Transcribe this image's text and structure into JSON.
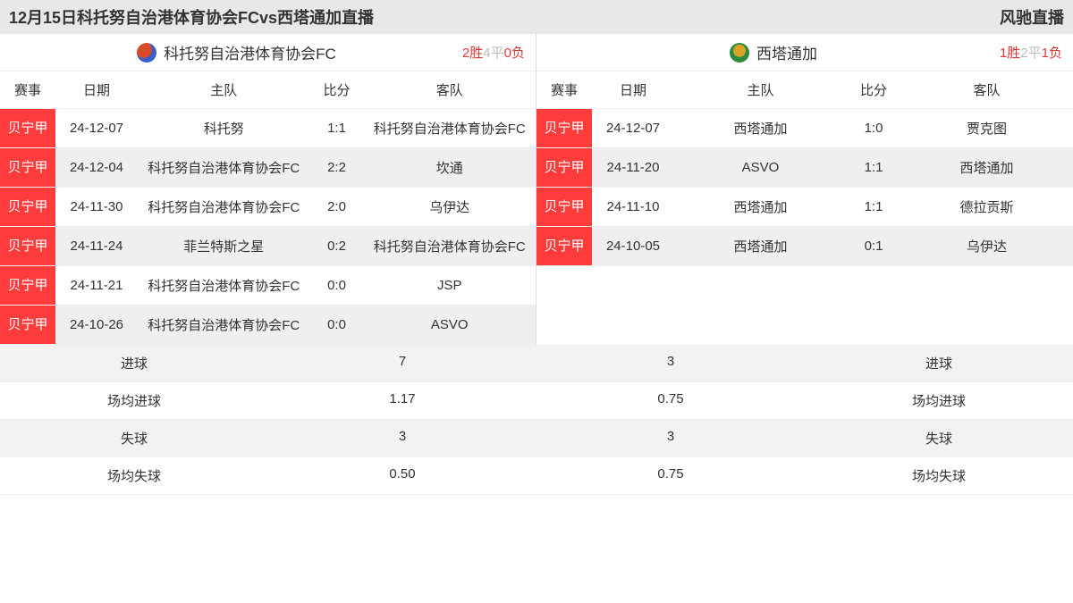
{
  "header": {
    "title": "12月15日科托努自治港体育协会FCvs西塔通加直播",
    "brand": "风驰直播"
  },
  "columns": {
    "league": "赛事",
    "date": "日期",
    "home": "主队",
    "score": "比分",
    "away": "客队"
  },
  "colors": {
    "league_bg": "#ff3b3b",
    "win": "#e03636",
    "draw": "#bbbbbb",
    "row_alt": "#f0eef0",
    "header_bg": "#e8e8e8"
  },
  "left": {
    "team_name": "科托努自治港体育协会FC",
    "logo_color_a": "#d94a2a",
    "logo_color_b": "#3a5fcc",
    "record": {
      "win_n": "2",
      "win_t": "胜",
      "draw_n": "4",
      "draw_t": "平",
      "loss_n": "0",
      "loss_t": "负"
    },
    "rows": [
      {
        "league": "贝宁甲",
        "date": "24-12-07",
        "home": "科托努",
        "score": "1:1",
        "away": "科托努自治港体育协会FC"
      },
      {
        "league": "贝宁甲",
        "date": "24-12-04",
        "home": "科托努自治港体育协会FC",
        "score": "2:2",
        "away": "坎通"
      },
      {
        "league": "贝宁甲",
        "date": "24-11-30",
        "home": "科托努自治港体育协会FC",
        "score": "2:0",
        "away": "乌伊达"
      },
      {
        "league": "贝宁甲",
        "date": "24-11-24",
        "home": "菲兰特斯之星",
        "score": "0:2",
        "away": "科托努自治港体育协会FC"
      },
      {
        "league": "贝宁甲",
        "date": "24-11-21",
        "home": "科托努自治港体育协会FC",
        "score": "0:0",
        "away": "JSP"
      },
      {
        "league": "贝宁甲",
        "date": "24-10-26",
        "home": "科托努自治港体育协会FC",
        "score": "0:0",
        "away": "ASVO"
      }
    ],
    "stats": [
      {
        "label": "进球",
        "value": "7"
      },
      {
        "label": "场均进球",
        "value": "1.17"
      },
      {
        "label": "失球",
        "value": "3"
      },
      {
        "label": "场均失球",
        "value": "0.50"
      }
    ]
  },
  "right": {
    "team_name": "西塔通加",
    "logo_color_a": "#d9a32a",
    "logo_color_b": "#2a8a3d",
    "record": {
      "win_n": "1",
      "win_t": "胜",
      "draw_n": "2",
      "draw_t": "平",
      "loss_n": "1",
      "loss_t": "负"
    },
    "rows": [
      {
        "league": "贝宁甲",
        "date": "24-12-07",
        "home": "西塔通加",
        "score": "1:0",
        "away": "贾克图"
      },
      {
        "league": "贝宁甲",
        "date": "24-11-20",
        "home": "ASVO",
        "score": "1:1",
        "away": "西塔通加"
      },
      {
        "league": "贝宁甲",
        "date": "24-11-10",
        "home": "西塔通加",
        "score": "1:1",
        "away": "德拉贡斯"
      },
      {
        "league": "贝宁甲",
        "date": "24-10-05",
        "home": "西塔通加",
        "score": "0:1",
        "away": "乌伊达"
      }
    ],
    "stats": [
      {
        "label": "进球",
        "value": "3"
      },
      {
        "label": "场均进球",
        "value": "0.75"
      },
      {
        "label": "失球",
        "value": "3"
      },
      {
        "label": "场均失球",
        "value": "0.75"
      }
    ]
  }
}
